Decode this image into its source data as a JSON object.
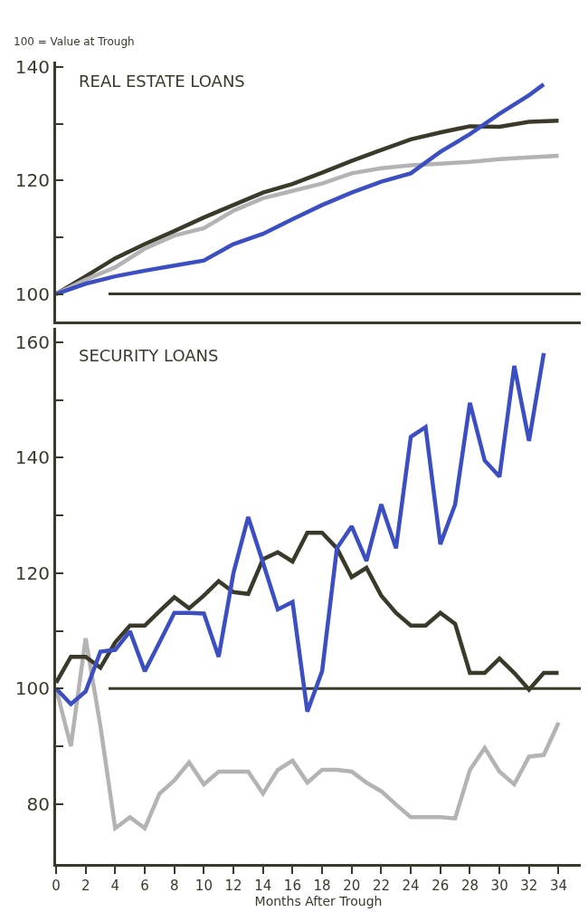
{
  "chart_data": [
    {
      "type": "line",
      "title": "REAL ESTATE LOANS",
      "annotations": [
        "100 = Value at Trough"
      ],
      "x": [
        0,
        2,
        4,
        6,
        8,
        10,
        12,
        14,
        16,
        18,
        20,
        22,
        24,
        26,
        28,
        30,
        32,
        34
      ],
      "series": [
        {
          "color": "#3b3a2a",
          "values": [
            100,
            103.1,
            106.3,
            108.8,
            111.1,
            113.5,
            115.7,
            117.9,
            119.4,
            121.4,
            123.5,
            125.4,
            127.3,
            128.5,
            129.6,
            129.5,
            130.4,
            130.6
          ]
        },
        {
          "color": "#b3b3b3",
          "values": [
            100,
            102.5,
            104.7,
            108,
            110.3,
            111.6,
            114.7,
            116.9,
            118.2,
            119.5,
            121.3,
            122.2,
            122.7,
            123,
            123.3,
            123.8,
            124.1,
            124.4
          ]
        },
        {
          "color": "#3b4fc2",
          "x": [
            0,
            2,
            4,
            6,
            8,
            10,
            12,
            14,
            16,
            18,
            20,
            22,
            24,
            26,
            28,
            30,
            32,
            33
          ],
          "values": [
            100,
            101.8,
            103.1,
            104.1,
            105,
            105.9,
            108.8,
            110.6,
            113.2,
            115.7,
            117.9,
            119.8,
            121.3,
            125.1,
            128.2,
            131.8,
            135.1,
            137
          ]
        }
      ],
      "ref_lines": [
        {
          "axis": "y",
          "value": 100,
          "color": "#3b3a2a"
        }
      ],
      "xlim": [
        0,
        35.5
      ],
      "ylim": [
        95.2,
        141
      ],
      "yticks": [
        100,
        {
          "value": 110,
          "label": null
        },
        120,
        {
          "value": 130,
          "label": null
        },
        140
      ],
      "tick_labels": "y",
      "grid": false,
      "marker": "none",
      "line_style": "solid"
    },
    {
      "type": "line",
      "title": "SECURITY LOANS",
      "xlabel": "Months After Trough",
      "x": [
        0,
        1,
        2,
        3,
        4,
        5,
        6,
        7,
        8,
        9,
        10,
        11,
        12,
        13,
        14,
        15,
        16,
        17,
        18,
        19,
        20,
        21,
        22,
        23,
        24,
        25,
        26,
        27,
        28,
        29,
        30,
        31,
        32,
        33,
        34
      ],
      "series": [
        {
          "color": "#b3b3b3",
          "values": [
            100,
            90,
            108.7,
            93.5,
            75.8,
            77.7,
            75.8,
            81.8,
            84.1,
            87.2,
            83.4,
            85.6,
            85.6,
            85.6,
            81.8,
            85.9,
            87.5,
            83.7,
            85.9,
            85.9,
            85.6,
            83.7,
            82.2,
            79.9,
            77.7,
            77.7,
            77.7,
            77.5,
            85.9,
            89.7,
            85.6,
            83.4,
            88.2,
            88.5,
            94.1
          ]
        },
        {
          "color": "#3b3a2a",
          "values": [
            101,
            105.5,
            105.5,
            103.6,
            108,
            110.9,
            110.9,
            113.4,
            115.8,
            113.9,
            116.1,
            118.6,
            116.7,
            116.4,
            122.4,
            123.6,
            122,
            127,
            127,
            124.3,
            119.3,
            120.9,
            116.1,
            113.1,
            110.9,
            110.9,
            113.1,
            111.2,
            102.7,
            102.7,
            105.2,
            102.7,
            99.8,
            102.7,
            102.7
          ]
        },
        {
          "color": "#3b4fc2",
          "x": [
            0,
            1,
            2,
            3,
            4,
            5,
            6,
            7,
            8,
            9,
            10,
            11,
            12,
            13,
            14,
            15,
            16,
            17,
            18,
            19,
            20,
            21,
            22,
            23,
            24,
            25,
            26,
            27,
            28,
            29,
            30,
            31,
            32,
            33
          ],
          "values": [
            100,
            97.3,
            99.5,
            106.4,
            106.7,
            109.9,
            103,
            108,
            113.1,
            113.1,
            113,
            105.5,
            120,
            129.7,
            121.8,
            113.7,
            115,
            96,
            103,
            124.3,
            128.1,
            122.1,
            131.9,
            124.3,
            143.6,
            145.3,
            125,
            131.9,
            149.5,
            139.5,
            136.7,
            155.9,
            142.9,
            158.1
          ]
        }
      ],
      "ref_lines": [
        {
          "axis": "y",
          "value": 100,
          "color": "#3b3a2a"
        }
      ],
      "xlim": [
        0,
        35.5
      ],
      "ylim": [
        69.6,
        162.5
      ],
      "xticks": [
        0,
        2,
        4,
        6,
        8,
        10,
        12,
        14,
        16,
        18,
        20,
        22,
        24,
        26,
        28,
        30,
        32,
        34
      ],
      "yticks": [
        80,
        {
          "value": 90,
          "label": null
        },
        100,
        {
          "value": 110,
          "label": null
        },
        120,
        {
          "value": 130,
          "label": null
        },
        140,
        {
          "value": 150,
          "label": null
        },
        160
      ],
      "grid": false,
      "marker": "none",
      "line_style": "solid"
    }
  ]
}
